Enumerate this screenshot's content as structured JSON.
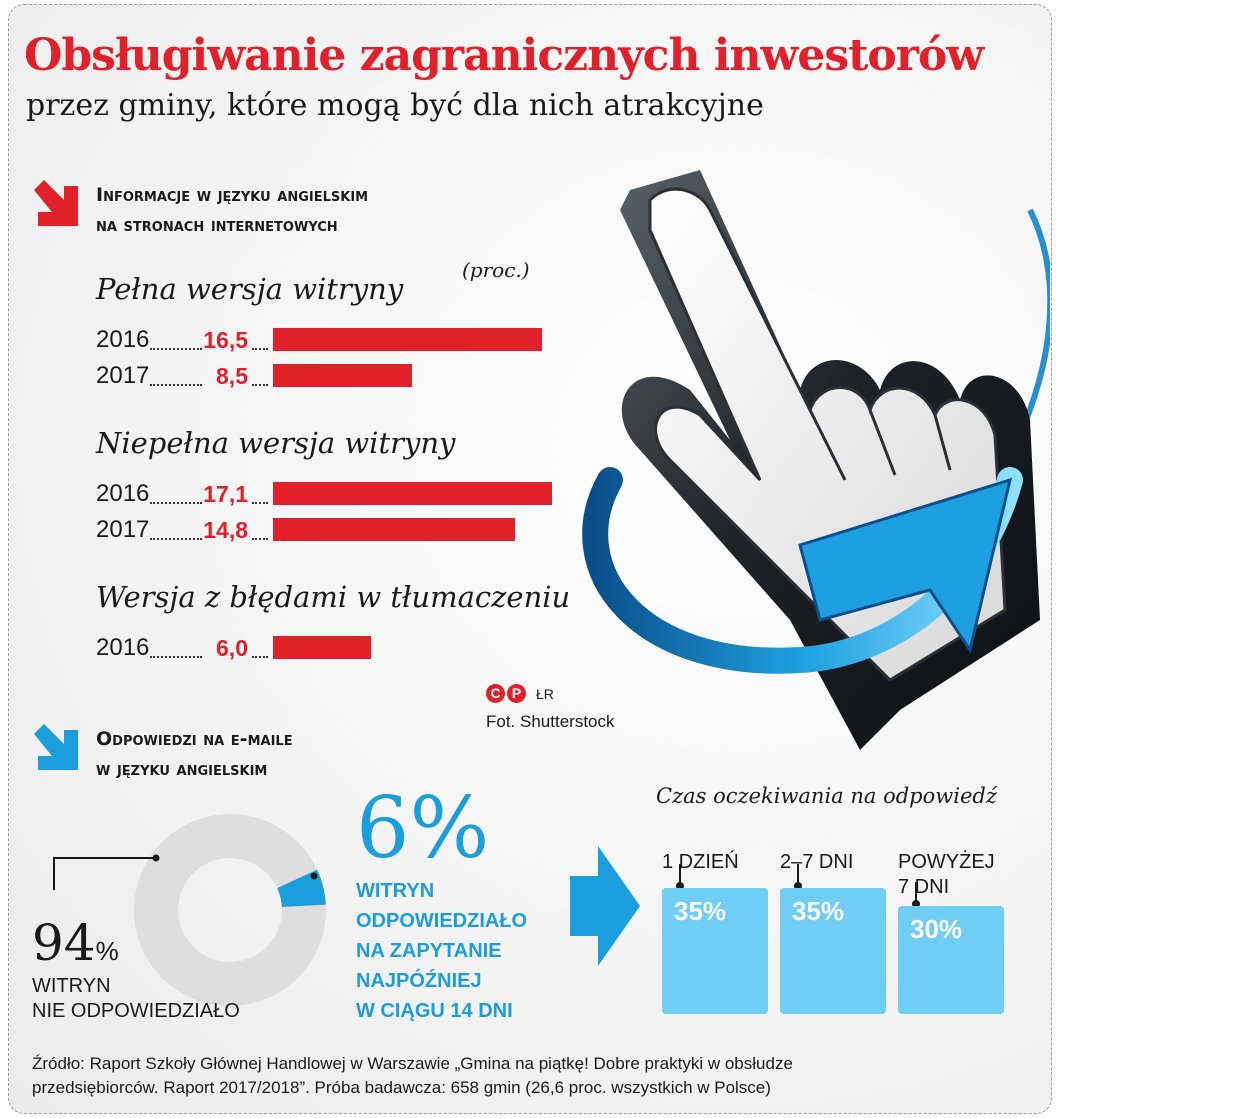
{
  "title": "Obsługiwanie zagranicznych inwestorów",
  "subtitle": "przez gminy, które mogą być dla nich atrakcyjne",
  "colors": {
    "red": "#e0202a",
    "blue": "#1c9ddc",
    "light_blue": "#70cdf4",
    "grey": "#dedede"
  },
  "section1": {
    "heading_line1": "Informacje w języku angielskim",
    "heading_line2": "na stronach internetowych",
    "unit": "(proc.)",
    "icon": "red-arrow-down-right-icon"
  },
  "chart_data": [
    {
      "type": "bar",
      "orientation": "horizontal",
      "unit": "(proc.)",
      "groups": [
        {
          "name": "Pełna wersja witryny",
          "categories": [
            "2016",
            "2017"
          ],
          "values": [
            16.5,
            8.5
          ],
          "labels": [
            "16,5",
            "8,5"
          ]
        },
        {
          "name": "Niepełna wersja witryny",
          "categories": [
            "2016",
            "2017"
          ],
          "values": [
            17.1,
            14.8
          ],
          "labels": [
            "17,1",
            "14,8"
          ]
        },
        {
          "name": "Wersja z błędami w tłumaczeniu",
          "categories": [
            "2016"
          ],
          "values": [
            6.0
          ],
          "labels": [
            "6,0"
          ]
        }
      ],
      "xlim": [
        0,
        17.1
      ],
      "grid": false
    },
    {
      "type": "pie",
      "variant": "donut",
      "slices": [
        {
          "value": 94,
          "label": "94%",
          "text": [
            "WITRYN",
            "NIE ODPOWIEDZIAŁO"
          ]
        },
        {
          "value": 6,
          "label": "6%",
          "text": [
            "WITRYN",
            "ODPOWIEDZIAŁO",
            "NA ZAPYTANIE",
            "NAJPÓŹNIEJ",
            "W CIĄGU 14 DNI"
          ]
        }
      ]
    },
    {
      "type": "bar",
      "title": "Czas oczekiwania na odpowiedź",
      "categories": [
        "1 DZIEŃ",
        "2–7 DNI",
        "POWYŻEJ 7 DNI"
      ],
      "values": [
        35,
        35,
        30
      ],
      "labels": [
        "35%",
        "35%",
        "30%"
      ]
    }
  ],
  "section2": {
    "heading_line1": "Odpowiedzi na e-maile",
    "heading_line2": "w języku angielskim",
    "icon": "blue-arrow-down-right-icon",
    "big_6": "6%",
    "big_94": "94",
    "big_94_pct": "%",
    "text_6": [
      "WITRYN",
      "ODPOWIEDZIAŁO",
      "NA ZAPYTANIE",
      "NAJPÓŹNIEJ",
      "W CIĄGU 14 DNI"
    ],
    "text_94": [
      "WITRYN",
      "NIE ODPOWIEDZIAŁO"
    ]
  },
  "wait": {
    "title": "Czas oczekiwania na odpowiedź",
    "labels": [
      [
        "1 DZIEŃ"
      ],
      [
        "2–7 DNI"
      ],
      [
        "POWYŻEJ",
        "7 DNI"
      ]
    ],
    "values": [
      "35%",
      "35%",
      "30%"
    ]
  },
  "credit": {
    "mark": "ŁR",
    "photo": "Fot. Shutterstock"
  },
  "source": {
    "line1": "Źródło: Raport Szkoły Głównej Handlowej w Warszawie „Gmina na piątkę! Dobre praktyki w obsłudze",
    "line2": "przedsiębiorców. Raport 2017/2018”.  Próba badawcza: 658 gmin (26,6 proc. wszystkich w Polsce)"
  }
}
